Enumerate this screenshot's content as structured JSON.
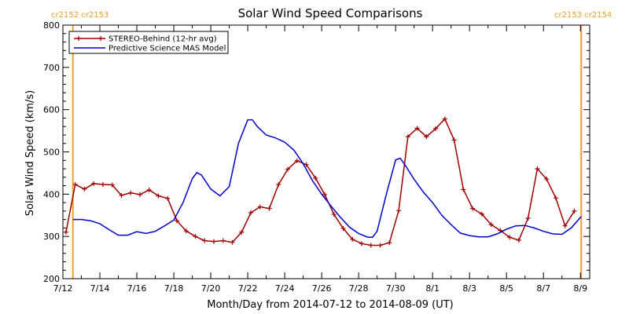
{
  "chart_data": {
    "type": "line",
    "title": "Solar Wind Speed Comparisons",
    "xlabel": "Month/Day from 2014-07-12 to 2014-08-09 (UT)",
    "ylabel": "Solar Wind Speed (km/s)",
    "x_unit": "date (UT)",
    "x_start": "2014-07-12",
    "x_end": "2014-08-09",
    "ylim": [
      200,
      800
    ],
    "x_ticks": [
      "7/12",
      "7/14",
      "7/16",
      "7/18",
      "7/20",
      "7/22",
      "7/24",
      "7/26",
      "7/28",
      "7/30",
      "8/1",
      "8/3",
      "8/5",
      "8/7",
      "8/9"
    ],
    "y_ticks": [
      200,
      300,
      400,
      500,
      600,
      700,
      800
    ],
    "grid": false,
    "legend_position": "top-left",
    "carrington_markers": [
      {
        "date": "2014-07-12T13:00",
        "label": "cr2152 cr2153",
        "color": "#f0a020"
      },
      {
        "date": "2014-08-09T01:00",
        "label": "cr2153 cr2154",
        "color": "#f0a020"
      }
    ],
    "series": [
      {
        "name": "STEREO-Behind (12-hr avg)",
        "color": "#a00000",
        "markers": "plus",
        "points": [
          [
            "2014-07-12T04:00",
            310
          ],
          [
            "2014-07-12T16:00",
            423
          ],
          [
            "2014-07-13T04:00",
            412
          ],
          [
            "2014-07-13T16:00",
            425
          ],
          [
            "2014-07-14T04:00",
            423
          ],
          [
            "2014-07-14T16:00",
            422
          ],
          [
            "2014-07-15T04:00",
            397
          ],
          [
            "2014-07-15T16:00",
            403
          ],
          [
            "2014-07-16T04:00",
            399
          ],
          [
            "2014-07-16T16:00",
            410
          ],
          [
            "2014-07-17T04:00",
            396
          ],
          [
            "2014-07-17T16:00",
            390
          ],
          [
            "2014-07-18T04:00",
            337
          ],
          [
            "2014-07-18T16:00",
            313
          ],
          [
            "2014-07-19T04:00",
            300
          ],
          [
            "2014-07-19T16:00",
            290
          ],
          [
            "2014-07-20T04:00",
            288
          ],
          [
            "2014-07-20T16:00",
            290
          ],
          [
            "2014-07-21T04:00",
            286
          ],
          [
            "2014-07-21T16:00",
            310
          ],
          [
            "2014-07-22T04:00",
            356
          ],
          [
            "2014-07-22T16:00",
            370
          ],
          [
            "2014-07-23T04:00",
            366
          ],
          [
            "2014-07-23T16:00",
            423
          ],
          [
            "2014-07-24T04:00",
            459
          ],
          [
            "2014-07-24T16:00",
            479
          ],
          [
            "2014-07-25T04:00",
            470
          ],
          [
            "2014-07-25T16:00",
            438
          ],
          [
            "2014-07-26T04:00",
            399
          ],
          [
            "2014-07-26T16:00",
            352
          ],
          [
            "2014-07-27T04:00",
            319
          ],
          [
            "2014-07-27T16:00",
            293
          ],
          [
            "2014-07-28T04:00",
            283
          ],
          [
            "2014-07-28T16:00",
            279
          ],
          [
            "2014-07-29T04:00",
            279
          ],
          [
            "2014-07-29T16:00",
            285
          ],
          [
            "2014-07-30T04:00",
            361
          ],
          [
            "2014-07-30T16:00",
            536
          ],
          [
            "2014-07-31T04:00",
            556
          ],
          [
            "2014-07-31T16:00",
            536
          ],
          [
            "2014-08-01T04:00",
            555
          ],
          [
            "2014-08-01T16:00",
            578
          ],
          [
            "2014-08-02T04:00",
            528
          ],
          [
            "2014-08-02T16:00",
            411
          ],
          [
            "2014-08-03T04:00",
            366
          ],
          [
            "2014-08-03T16:00",
            353
          ],
          [
            "2014-08-04T04:00",
            328
          ],
          [
            "2014-08-04T16:00",
            314
          ],
          [
            "2014-08-05T04:00",
            298
          ],
          [
            "2014-08-05T16:00",
            291
          ],
          [
            "2014-08-06T04:00",
            343
          ],
          [
            "2014-08-06T16:00",
            460
          ],
          [
            "2014-08-07T04:00",
            436
          ],
          [
            "2014-08-07T16:00",
            391
          ],
          [
            "2014-08-08T04:00",
            325
          ],
          [
            "2014-08-08T16:00",
            360
          ]
        ]
      },
      {
        "name": "Predictive Science MAS Model",
        "color": "#0000cc",
        "markers": "none",
        "points": [
          [
            "2014-07-12T13:00",
            340
          ],
          [
            "2014-07-13T00:00",
            340
          ],
          [
            "2014-07-13T12:00",
            337
          ],
          [
            "2014-07-14T00:00",
            330
          ],
          [
            "2014-07-14T12:00",
            316
          ],
          [
            "2014-07-15T00:00",
            303
          ],
          [
            "2014-07-15T12:00",
            303
          ],
          [
            "2014-07-16T00:00",
            311
          ],
          [
            "2014-07-16T12:00",
            307
          ],
          [
            "2014-07-17T00:00",
            312
          ],
          [
            "2014-07-17T12:00",
            325
          ],
          [
            "2014-07-18T00:00",
            339
          ],
          [
            "2014-07-18T12:00",
            380
          ],
          [
            "2014-07-19T00:00",
            437
          ],
          [
            "2014-07-19T06:00",
            451
          ],
          [
            "2014-07-19T12:00",
            445
          ],
          [
            "2014-07-20T00:00",
            412
          ],
          [
            "2014-07-20T12:00",
            396
          ],
          [
            "2014-07-21T00:00",
            418
          ],
          [
            "2014-07-21T12:00",
            520
          ],
          [
            "2014-07-22T00:00",
            576
          ],
          [
            "2014-07-22T06:00",
            576
          ],
          [
            "2014-07-22T12:00",
            561
          ],
          [
            "2014-07-23T00:00",
            540
          ],
          [
            "2014-07-23T12:00",
            533
          ],
          [
            "2014-07-24T00:00",
            523
          ],
          [
            "2014-07-24T12:00",
            504
          ],
          [
            "2014-07-25T00:00",
            472
          ],
          [
            "2014-07-25T12:00",
            432
          ],
          [
            "2014-07-26T00:00",
            400
          ],
          [
            "2014-07-26T12:00",
            372
          ],
          [
            "2014-07-27T00:00",
            346
          ],
          [
            "2014-07-27T12:00",
            322
          ],
          [
            "2014-07-28T00:00",
            307
          ],
          [
            "2014-07-28T12:00",
            298
          ],
          [
            "2014-07-28T18:00",
            298
          ],
          [
            "2014-07-29T00:00",
            312
          ],
          [
            "2014-07-29T12:00",
            400
          ],
          [
            "2014-07-30T00:00",
            481
          ],
          [
            "2014-07-30T06:00",
            485
          ],
          [
            "2014-07-30T12:00",
            470
          ],
          [
            "2014-07-31T00:00",
            435
          ],
          [
            "2014-07-31T12:00",
            405
          ],
          [
            "2014-08-01T00:00",
            380
          ],
          [
            "2014-08-01T12:00",
            350
          ],
          [
            "2014-08-02T00:00",
            328
          ],
          [
            "2014-08-02T12:00",
            308
          ],
          [
            "2014-08-03T00:00",
            302
          ],
          [
            "2014-08-03T12:00",
            299
          ],
          [
            "2014-08-04T00:00",
            299
          ],
          [
            "2014-08-04T12:00",
            306
          ],
          [
            "2014-08-05T00:00",
            317
          ],
          [
            "2014-08-05T12:00",
            325
          ],
          [
            "2014-08-06T00:00",
            326
          ],
          [
            "2014-08-06T12:00",
            320
          ],
          [
            "2014-08-07T00:00",
            312
          ],
          [
            "2014-08-07T12:00",
            306
          ],
          [
            "2014-08-08T00:00",
            305
          ],
          [
            "2014-08-08T12:00",
            320
          ],
          [
            "2014-08-09T01:00",
            347
          ]
        ]
      }
    ]
  }
}
